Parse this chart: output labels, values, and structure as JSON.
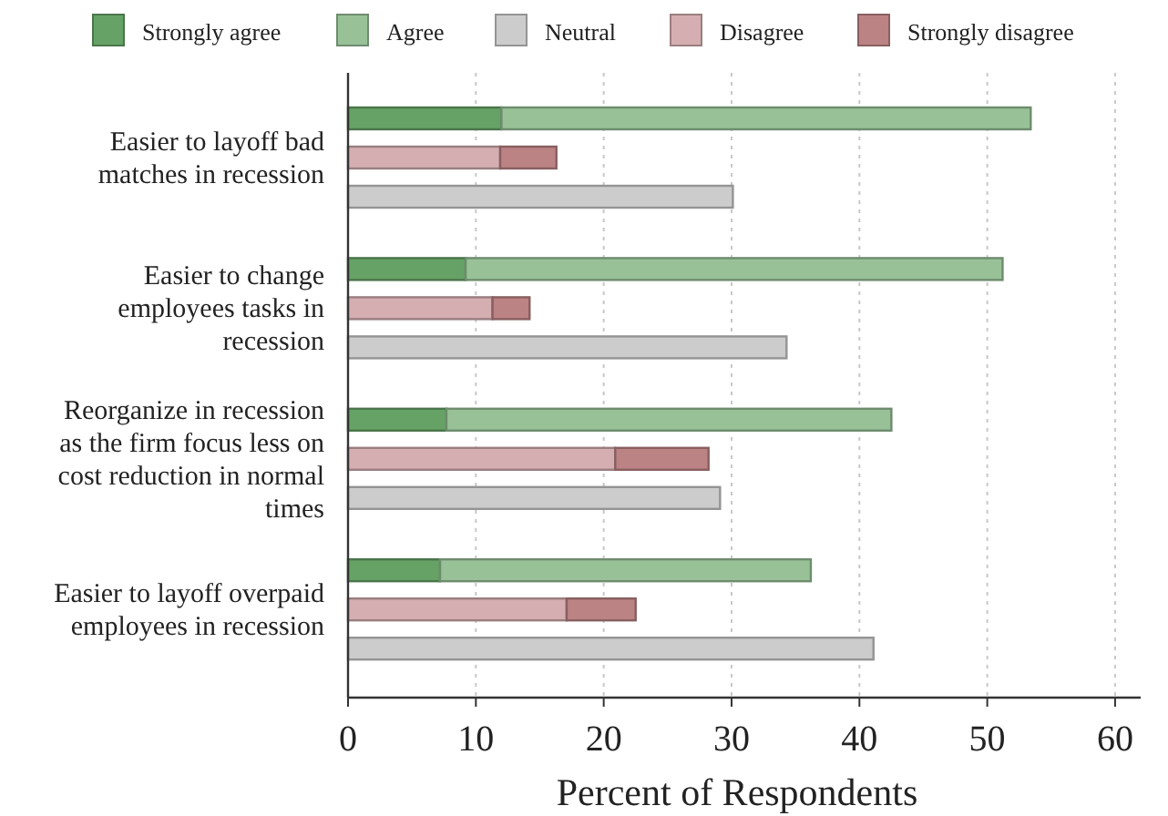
{
  "chart_data": {
    "type": "bar",
    "orientation": "horizontal",
    "stacked": true,
    "categories": [
      null,
      "Easier to layoff bad\nmatches in recession",
      null,
      null,
      "Easier to change\nemployees tasks in\nrecession",
      null,
      null,
      "Reorganize in recession\nas the firm focus less on\ncost reduction in normal\ntimes",
      null,
      null,
      "Easier to layoff overpaid\nemployees in recession",
      null
    ],
    "series": [
      {
        "name": "Strongly agree",
        "color": "#66a266",
        "values": [
          12.0,
          null,
          null,
          9.2,
          null,
          null,
          7.7,
          null,
          null,
          7.2,
          null,
          null
        ]
      },
      {
        "name": "Agree",
        "color": "#98c198",
        "values": [
          41.4,
          null,
          null,
          42.0,
          null,
          null,
          34.8,
          null,
          null,
          29.0,
          null,
          null
        ]
      },
      {
        "name": "Neutral",
        "color": "#cccccc",
        "values": [
          null,
          null,
          30.1,
          null,
          null,
          34.3,
          null,
          null,
          29.1,
          null,
          null,
          41.1
        ]
      },
      {
        "name": "Disagree",
        "color": "#d4aeb0",
        "values": [
          null,
          11.9,
          null,
          null,
          11.3,
          null,
          null,
          20.9,
          null,
          null,
          17.1,
          null
        ]
      },
      {
        "name": "Strongly disagree",
        "color": "#bc8384",
        "values": [
          null,
          4.4,
          null,
          null,
          2.9,
          null,
          null,
          7.3,
          null,
          null,
          5.4,
          null
        ]
      }
    ],
    "xlabel": "Percent of Respondents",
    "xlim": [
      0,
      62
    ],
    "xticks": [
      0,
      10,
      20,
      30,
      40,
      50,
      60
    ],
    "grid": "x",
    "legend": "top"
  }
}
